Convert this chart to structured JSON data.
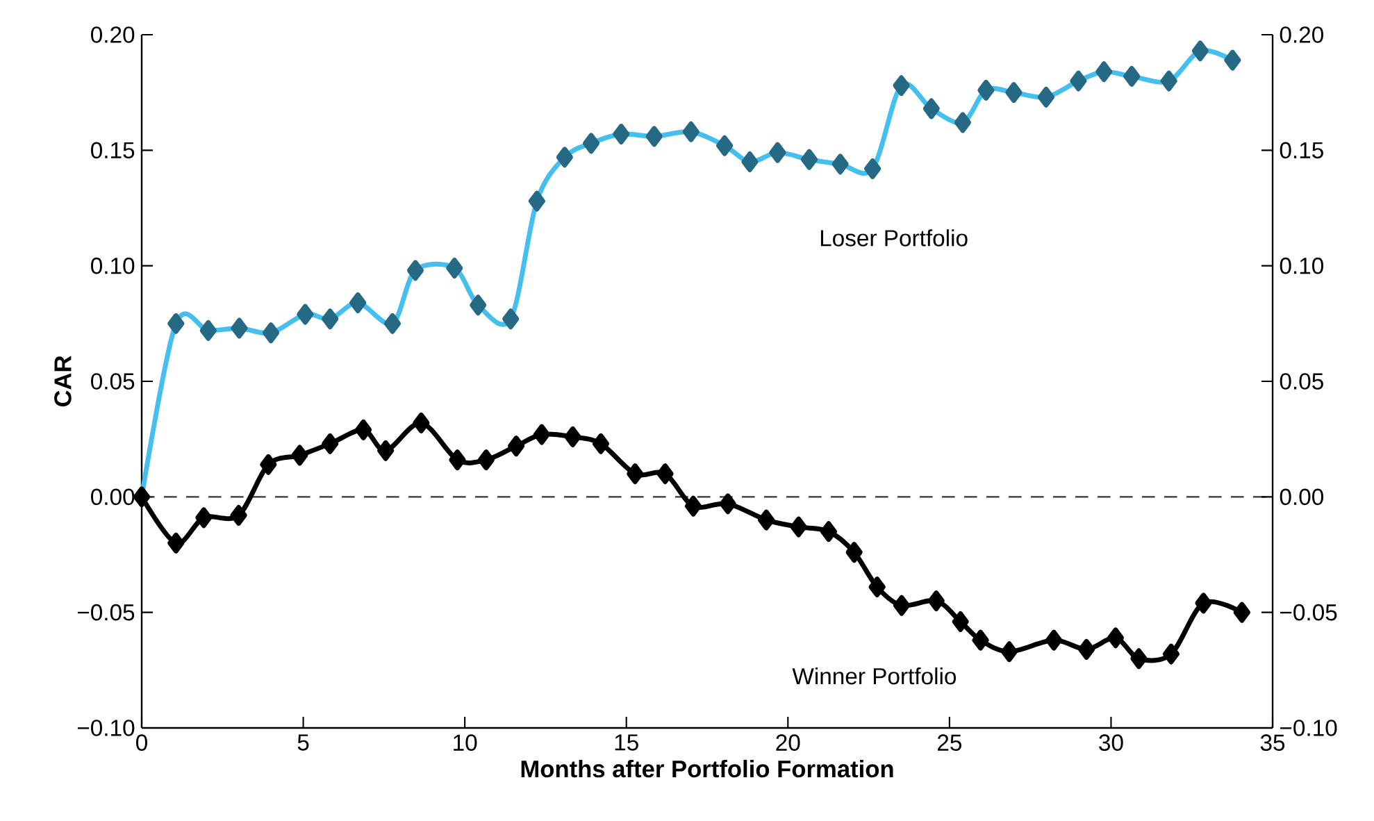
{
  "chart_data": {
    "type": "line",
    "xlabel": "Months after Portfolio Formation",
    "ylabel": "CAR",
    "series": [
      {
        "color": "#45bff0",
        "x": [
          0,
          1.06,
          2.06,
          3.02,
          4.0,
          5.06,
          5.83,
          6.69,
          7.76,
          8.47,
          9.68,
          10.41,
          11.42,
          12.23,
          13.09,
          13.91,
          14.84,
          15.86,
          17.0,
          18.04,
          18.82,
          19.68,
          20.66,
          21.62,
          22.62,
          23.51,
          24.44,
          25.41,
          26.13,
          26.99,
          27.99,
          28.99,
          29.78,
          30.64,
          31.79,
          32.76,
          33.76
        ],
        "values": [
          0,
          0.075,
          0.072,
          0.073,
          0.071,
          0.079,
          0.077,
          0.084,
          0.075,
          0.098,
          0.099,
          0.083,
          0.077,
          0.128,
          0.147,
          0.153,
          0.157,
          0.156,
          0.158,
          0.152,
          0.145,
          0.149,
          0.146,
          0.144,
          0.142,
          0.178,
          0.168,
          0.162,
          0.176,
          0.175,
          0.173,
          0.18,
          0.184,
          0.182,
          0.18,
          0.193,
          0.189
        ]
      },
      {
        "color": "#000000",
        "x": [
          0,
          1.06,
          1.92,
          3.0,
          3.92,
          4.89,
          5.83,
          6.86,
          7.55,
          8.65,
          9.77,
          10.66,
          11.59,
          12.38,
          13.34,
          14.21,
          15.27,
          16.2,
          17.07,
          18.14,
          19.33,
          20.33,
          21.26,
          22.05,
          22.76,
          23.52,
          24.59,
          25.34,
          25.96,
          26.85,
          28.23,
          29.24,
          30.14,
          30.86,
          31.86,
          32.86,
          34.05
        ],
        "values": [
          0,
          -0.02,
          -0.009,
          -0.008,
          0.014,
          0.018,
          0.023,
          0.029,
          0.02,
          0.032,
          0.016,
          0.016,
          0.022,
          0.027,
          0.026,
          0.023,
          0.01,
          0.01,
          -0.004,
          -0.003,
          -0.01,
          -0.013,
          -0.015,
          -0.024,
          -0.039,
          -0.047,
          -0.045,
          -0.054,
          -0.062,
          -0.067,
          -0.062,
          -0.066,
          -0.061,
          -0.07,
          -0.068,
          -0.046,
          -0.05
        ]
      }
    ],
    "xlim": [
      0,
      35
    ],
    "xticks": [
      0,
      5,
      10,
      15,
      20,
      25,
      30,
      35
    ],
    "ylim": [
      -0.1,
      0.2
    ],
    "yticks": [
      {
        "value": -0.1,
        "label": "−0.10"
      },
      {
        "value": -0.05,
        "label": "−0.05"
      },
      {
        "value": 0,
        "label": "0.00"
      },
      {
        "value": 0.05,
        "label": "0.05"
      },
      {
        "value": 0.1,
        "label": "0.10"
      },
      {
        "value": 0.15,
        "label": "0.15"
      },
      {
        "value": 0.2,
        "label": "0.20"
      }
    ],
    "y2lim": [
      -0.1,
      0.2
    ],
    "y2ticks": [
      {
        "value": -0.1,
        "label": "−0.10"
      },
      {
        "value": -0.05,
        "label": "−0.05"
      },
      {
        "value": 0,
        "label": "0.00"
      },
      {
        "value": 0.05,
        "label": "0.05"
      },
      {
        "value": 0.1,
        "label": "0.10"
      },
      {
        "value": 0.15,
        "label": "0.15"
      },
      {
        "value": 0.2,
        "label": "0.20"
      }
    ],
    "ref_lines": [
      {
        "axis": "y",
        "value": 0,
        "color": "#333333",
        "line_style": "dashed"
      }
    ],
    "annotations": [
      "Loser Portfolio",
      "Winner Portfolio"
    ],
    "grid": false,
    "marker": "diamond",
    "line_style": "solid"
  }
}
